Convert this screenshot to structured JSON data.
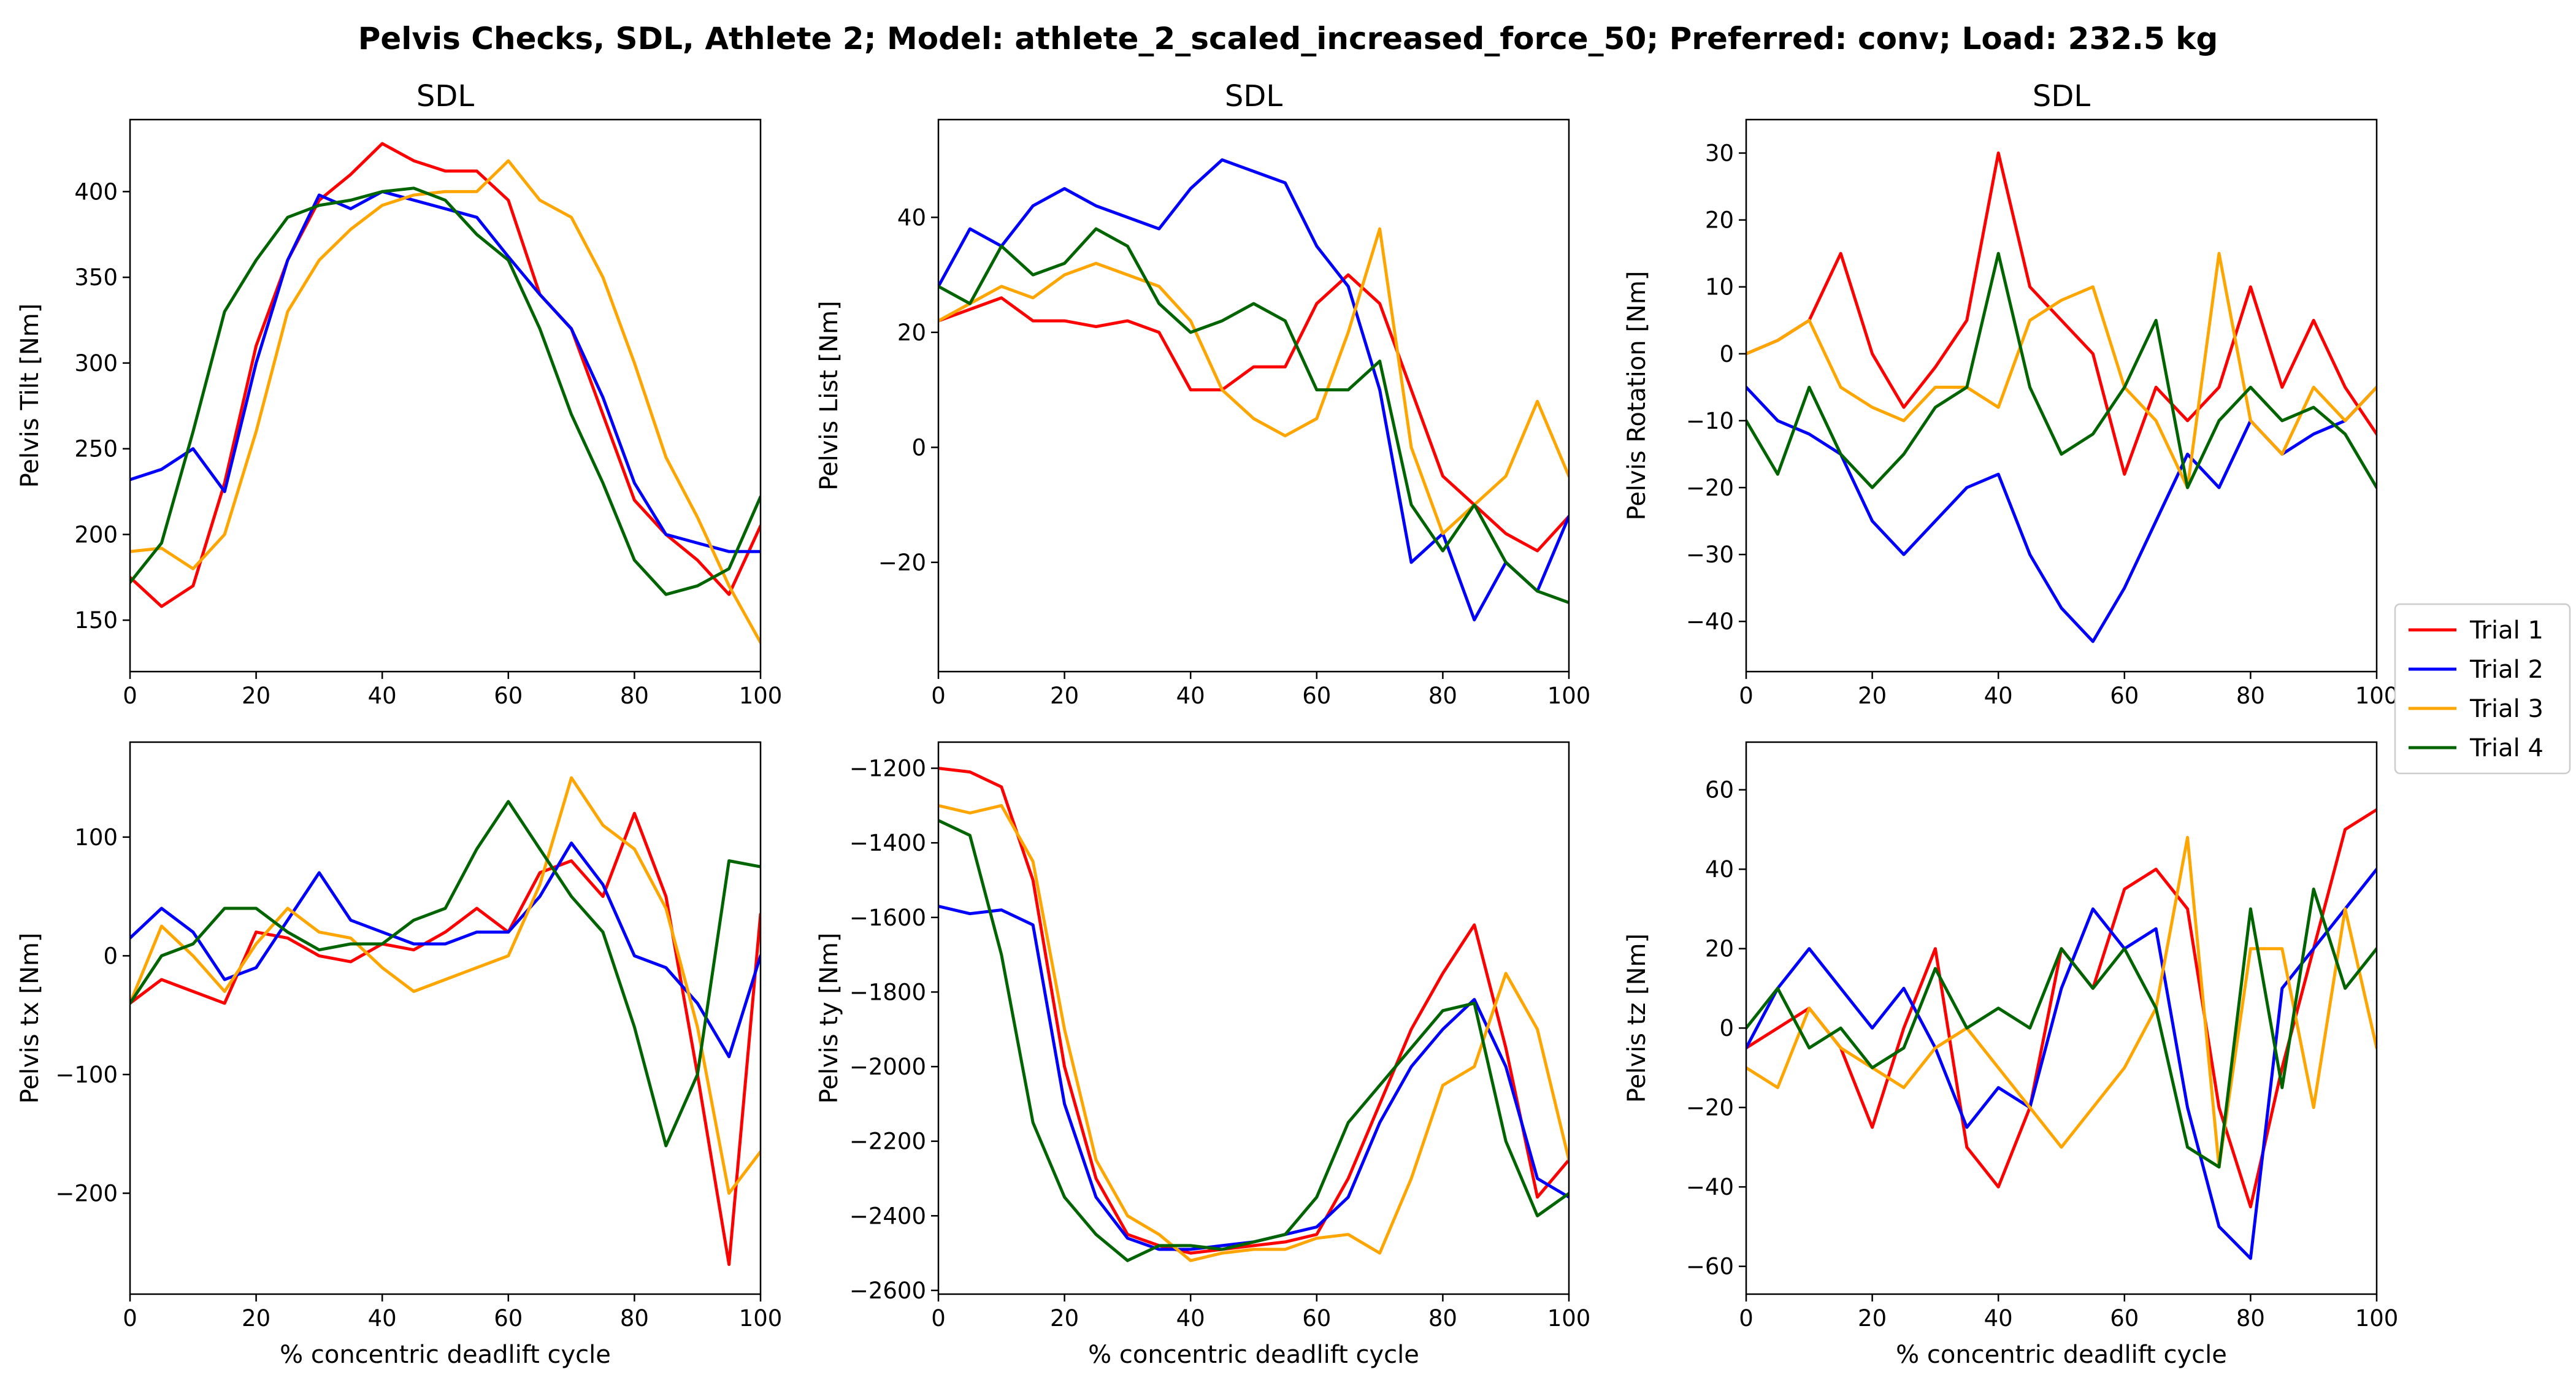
{
  "figure": {
    "title": "Pelvis Checks, SDL, Athlete 2; Model: athlete_2_scaled_increased_force_50; Preferred: conv; Load: 232.5 kg"
  },
  "legend": {
    "placement": "right",
    "entries": [
      {
        "label": "Trial 1",
        "color": "#ff0000"
      },
      {
        "label": "Trial 2",
        "color": "#0000ff"
      },
      {
        "label": "Trial 3",
        "color": "#ffa500"
      },
      {
        "label": "Trial 4",
        "color": "#006400"
      }
    ]
  },
  "chart_data": [
    {
      "type": "line",
      "title": "SDL",
      "xlabel": "",
      "ylabel": "Pelvis Tilt [Nm]",
      "xlim": [
        0,
        100
      ],
      "ylim": [
        120,
        442
      ],
      "xticks": [
        0,
        20,
        40,
        60,
        80,
        100
      ],
      "yticks": [
        150,
        200,
        250,
        300,
        350,
        400
      ],
      "x": [
        0,
        5,
        10,
        15,
        20,
        25,
        30,
        35,
        40,
        45,
        50,
        55,
        60,
        65,
        70,
        75,
        80,
        85,
        90,
        95,
        100
      ],
      "series": [
        {
          "name": "Trial 1",
          "values": [
            175,
            158,
            170,
            230,
            310,
            360,
            395,
            410,
            428,
            418,
            412,
            412,
            395,
            340,
            320,
            270,
            220,
            200,
            185,
            165,
            205
          ]
        },
        {
          "name": "Trial 2",
          "values": [
            232,
            238,
            250,
            225,
            300,
            360,
            398,
            390,
            400,
            395,
            390,
            385,
            362,
            340,
            320,
            280,
            230,
            200,
            195,
            190,
            190
          ]
        },
        {
          "name": "Trial 3",
          "values": [
            190,
            192,
            180,
            200,
            260,
            330,
            360,
            378,
            392,
            398,
            400,
            400,
            418,
            395,
            385,
            350,
            300,
            245,
            210,
            170,
            137
          ]
        },
        {
          "name": "Trial 4",
          "values": [
            172,
            195,
            260,
            330,
            360,
            385,
            392,
            395,
            400,
            402,
            395,
            375,
            360,
            320,
            270,
            230,
            185,
            165,
            170,
            180,
            222
          ]
        }
      ]
    },
    {
      "type": "line",
      "title": "SDL",
      "xlabel": "",
      "ylabel": "Pelvis List [Nm]",
      "xlim": [
        0,
        100
      ],
      "ylim": [
        -39,
        57
      ],
      "xticks": [
        0,
        20,
        40,
        60,
        80,
        100
      ],
      "yticks": [
        -20,
        0,
        20,
        40
      ],
      "x": [
        0,
        5,
        10,
        15,
        20,
        25,
        30,
        35,
        40,
        45,
        50,
        55,
        60,
        65,
        70,
        75,
        80,
        85,
        90,
        95,
        100
      ],
      "series": [
        {
          "name": "Trial 1",
          "values": [
            22,
            24,
            26,
            22,
            22,
            21,
            22,
            20,
            10,
            10,
            14,
            14,
            25,
            30,
            25,
            10,
            -5,
            -10,
            -15,
            -18,
            -12
          ]
        },
        {
          "name": "Trial 2",
          "values": [
            28,
            38,
            35,
            42,
            45,
            42,
            40,
            38,
            45,
            50,
            48,
            46,
            35,
            28,
            10,
            -20,
            -15,
            -30,
            -20,
            -25,
            -12
          ]
        },
        {
          "name": "Trial 3",
          "values": [
            22,
            25,
            28,
            26,
            30,
            32,
            30,
            28,
            22,
            10,
            5,
            2,
            5,
            20,
            38,
            0,
            -15,
            -10,
            -5,
            8,
            -5
          ]
        },
        {
          "name": "Trial 4",
          "values": [
            28,
            25,
            35,
            30,
            32,
            38,
            35,
            25,
            20,
            22,
            25,
            22,
            10,
            10,
            15,
            -10,
            -18,
            -10,
            -20,
            -25,
            -27
          ]
        }
      ]
    },
    {
      "type": "line",
      "title": "SDL",
      "xlabel": "",
      "ylabel": "Pelvis Rotation [Nm]",
      "xlim": [
        0,
        100
      ],
      "ylim": [
        -47.5,
        35
      ],
      "xticks": [
        0,
        20,
        40,
        60,
        80,
        100
      ],
      "yticks": [
        -40,
        -30,
        -20,
        -10,
        0,
        10,
        20,
        30
      ],
      "x": [
        0,
        5,
        10,
        15,
        20,
        25,
        30,
        35,
        40,
        45,
        50,
        55,
        60,
        65,
        70,
        75,
        80,
        85,
        90,
        95,
        100
      ],
      "series": [
        {
          "name": "Trial 1",
          "values": [
            0,
            2,
            5,
            15,
            0,
            -8,
            -2,
            5,
            30,
            10,
            5,
            0,
            -18,
            -5,
            -10,
            -5,
            10,
            -5,
            5,
            -5,
            -12
          ]
        },
        {
          "name": "Trial 2",
          "values": [
            -5,
            -10,
            -12,
            -15,
            -25,
            -30,
            -25,
            -20,
            -18,
            -30,
            -38,
            -43,
            -35,
            -25,
            -15,
            -20,
            -10,
            -15,
            -12,
            -10,
            -5
          ]
        },
        {
          "name": "Trial 3",
          "values": [
            0,
            2,
            5,
            -5,
            -8,
            -10,
            -5,
            -5,
            -8,
            5,
            8,
            10,
            -5,
            -10,
            -20,
            15,
            -10,
            -15,
            -5,
            -10,
            -5
          ]
        },
        {
          "name": "Trial 4",
          "values": [
            -10,
            -18,
            -5,
            -15,
            -20,
            -15,
            -8,
            -5,
            15,
            -5,
            -15,
            -12,
            -5,
            5,
            -20,
            -10,
            -5,
            -10,
            -8,
            -12,
            -20
          ]
        }
      ]
    },
    {
      "type": "line",
      "title": "",
      "xlabel": "% concentric deadlift cycle",
      "ylabel": "Pelvis tx [Nm]",
      "xlim": [
        0,
        100
      ],
      "ylim": [
        -285,
        180
      ],
      "xticks": [
        0,
        20,
        40,
        60,
        80,
        100
      ],
      "yticks": [
        -200,
        -100,
        0,
        100
      ],
      "x": [
        0,
        5,
        10,
        15,
        20,
        25,
        30,
        35,
        40,
        45,
        50,
        55,
        60,
        65,
        70,
        75,
        80,
        85,
        90,
        95,
        100
      ],
      "series": [
        {
          "name": "Trial 1",
          "values": [
            -40,
            -20,
            -30,
            -40,
            20,
            15,
            0,
            -5,
            10,
            5,
            20,
            40,
            20,
            70,
            80,
            50,
            120,
            50,
            -100,
            -260,
            35
          ]
        },
        {
          "name": "Trial 2",
          "values": [
            15,
            40,
            20,
            -20,
            -10,
            30,
            70,
            30,
            20,
            10,
            10,
            20,
            20,
            50,
            95,
            60,
            0,
            -10,
            -40,
            -85,
            0
          ]
        },
        {
          "name": "Trial 3",
          "values": [
            -40,
            25,
            0,
            -30,
            10,
            40,
            20,
            15,
            -10,
            -30,
            -20,
            -10,
            0,
            60,
            150,
            110,
            90,
            40,
            -60,
            -200,
            -165
          ]
        },
        {
          "name": "Trial 4",
          "values": [
            -40,
            0,
            10,
            40,
            40,
            20,
            5,
            10,
            10,
            30,
            40,
            90,
            130,
            90,
            50,
            20,
            -60,
            -160,
            -100,
            80,
            75
          ]
        }
      ]
    },
    {
      "type": "line",
      "title": "",
      "xlabel": "% concentric deadlift cycle",
      "ylabel": "Pelvis ty [Nm]",
      "xlim": [
        0,
        100
      ],
      "ylim": [
        -2610,
        -1130
      ],
      "xticks": [
        0,
        20,
        40,
        60,
        80,
        100
      ],
      "yticks": [
        -2600,
        -2400,
        -2200,
        -2000,
        -1800,
        -1600,
        -1400,
        -1200
      ],
      "x": [
        0,
        5,
        10,
        15,
        20,
        25,
        30,
        35,
        40,
        45,
        50,
        55,
        60,
        65,
        70,
        75,
        80,
        85,
        90,
        95,
        100
      ],
      "series": [
        {
          "name": "Trial 1",
          "values": [
            -1200,
            -1210,
            -1250,
            -1500,
            -2000,
            -2300,
            -2450,
            -2480,
            -2500,
            -2490,
            -2480,
            -2470,
            -2450,
            -2300,
            -2100,
            -1900,
            -1750,
            -1620,
            -1950,
            -2350,
            -2250
          ]
        },
        {
          "name": "Trial 2",
          "values": [
            -1570,
            -1590,
            -1580,
            -1620,
            -2100,
            -2350,
            -2460,
            -2490,
            -2490,
            -2480,
            -2470,
            -2450,
            -2430,
            -2350,
            -2150,
            -2000,
            -1900,
            -1820,
            -2000,
            -2300,
            -2350
          ]
        },
        {
          "name": "Trial 3",
          "values": [
            -1300,
            -1320,
            -1300,
            -1450,
            -1900,
            -2250,
            -2400,
            -2450,
            -2520,
            -2500,
            -2490,
            -2490,
            -2460,
            -2450,
            -2500,
            -2300,
            -2050,
            -2000,
            -1750,
            -1900,
            -2250
          ]
        },
        {
          "name": "Trial 4",
          "values": [
            -1340,
            -1380,
            -1700,
            -2150,
            -2350,
            -2450,
            -2520,
            -2480,
            -2480,
            -2490,
            -2470,
            -2450,
            -2350,
            -2150,
            -2050,
            -1950,
            -1850,
            -1830,
            -2200,
            -2400,
            -2340
          ]
        }
      ]
    },
    {
      "type": "line",
      "title": "",
      "xlabel": "% concentric deadlift cycle",
      "ylabel": "Pelvis tz [Nm]",
      "xlim": [
        0,
        100
      ],
      "ylim": [
        -67,
        72
      ],
      "xticks": [
        0,
        20,
        40,
        60,
        80,
        100
      ],
      "yticks": [
        -60,
        -40,
        -20,
        0,
        20,
        40,
        60
      ],
      "x": [
        0,
        5,
        10,
        15,
        20,
        25,
        30,
        35,
        40,
        45,
        50,
        55,
        60,
        65,
        70,
        75,
        80,
        85,
        90,
        95,
        100
      ],
      "series": [
        {
          "name": "Trial 1",
          "values": [
            -5,
            0,
            5,
            -5,
            -25,
            0,
            20,
            -30,
            -40,
            -20,
            20,
            10,
            35,
            40,
            30,
            -20,
            -45,
            -10,
            20,
            50,
            55
          ]
        },
        {
          "name": "Trial 2",
          "values": [
            -5,
            10,
            20,
            10,
            0,
            10,
            -5,
            -25,
            -15,
            -20,
            10,
            30,
            20,
            25,
            -20,
            -50,
            -58,
            10,
            20,
            30,
            40
          ]
        },
        {
          "name": "Trial 3",
          "values": [
            -10,
            -15,
            5,
            -5,
            -10,
            -15,
            -5,
            0,
            -10,
            -20,
            -30,
            -20,
            -10,
            5,
            48,
            -35,
            20,
            20,
            -20,
            30,
            -5
          ]
        },
        {
          "name": "Trial 4",
          "values": [
            0,
            10,
            -5,
            0,
            -10,
            -5,
            15,
            0,
            5,
            0,
            20,
            10,
            20,
            5,
            -30,
            -35,
            30,
            -15,
            35,
            10,
            20
          ]
        }
      ]
    }
  ]
}
